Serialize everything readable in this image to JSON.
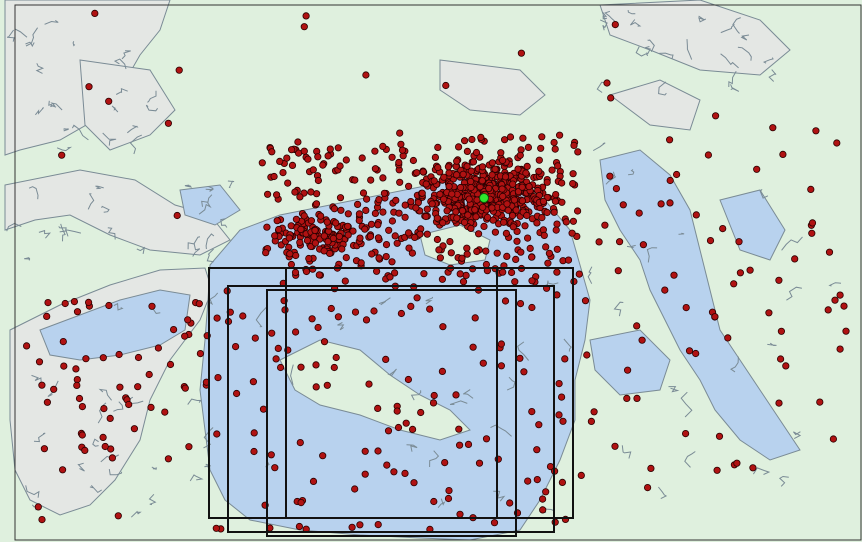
{
  "map": {
    "colors": {
      "background": "#dff0de",
      "land": "#e4e7e4",
      "water": "#b8d2ee",
      "coastline": "#7a8b95",
      "frame": "#000000",
      "point_fill": "#b01212",
      "point_stroke": "#2a0000",
      "highlight_fill": "#2ee62e",
      "box_stroke": "#111111"
    },
    "layers": [
      "land",
      "water",
      "coastline",
      "event-points",
      "highlight-point",
      "extent-boxes"
    ],
    "point_count_visible": 1200,
    "highlight_point": "green-center-marker",
    "extent_box_count": 4
  }
}
